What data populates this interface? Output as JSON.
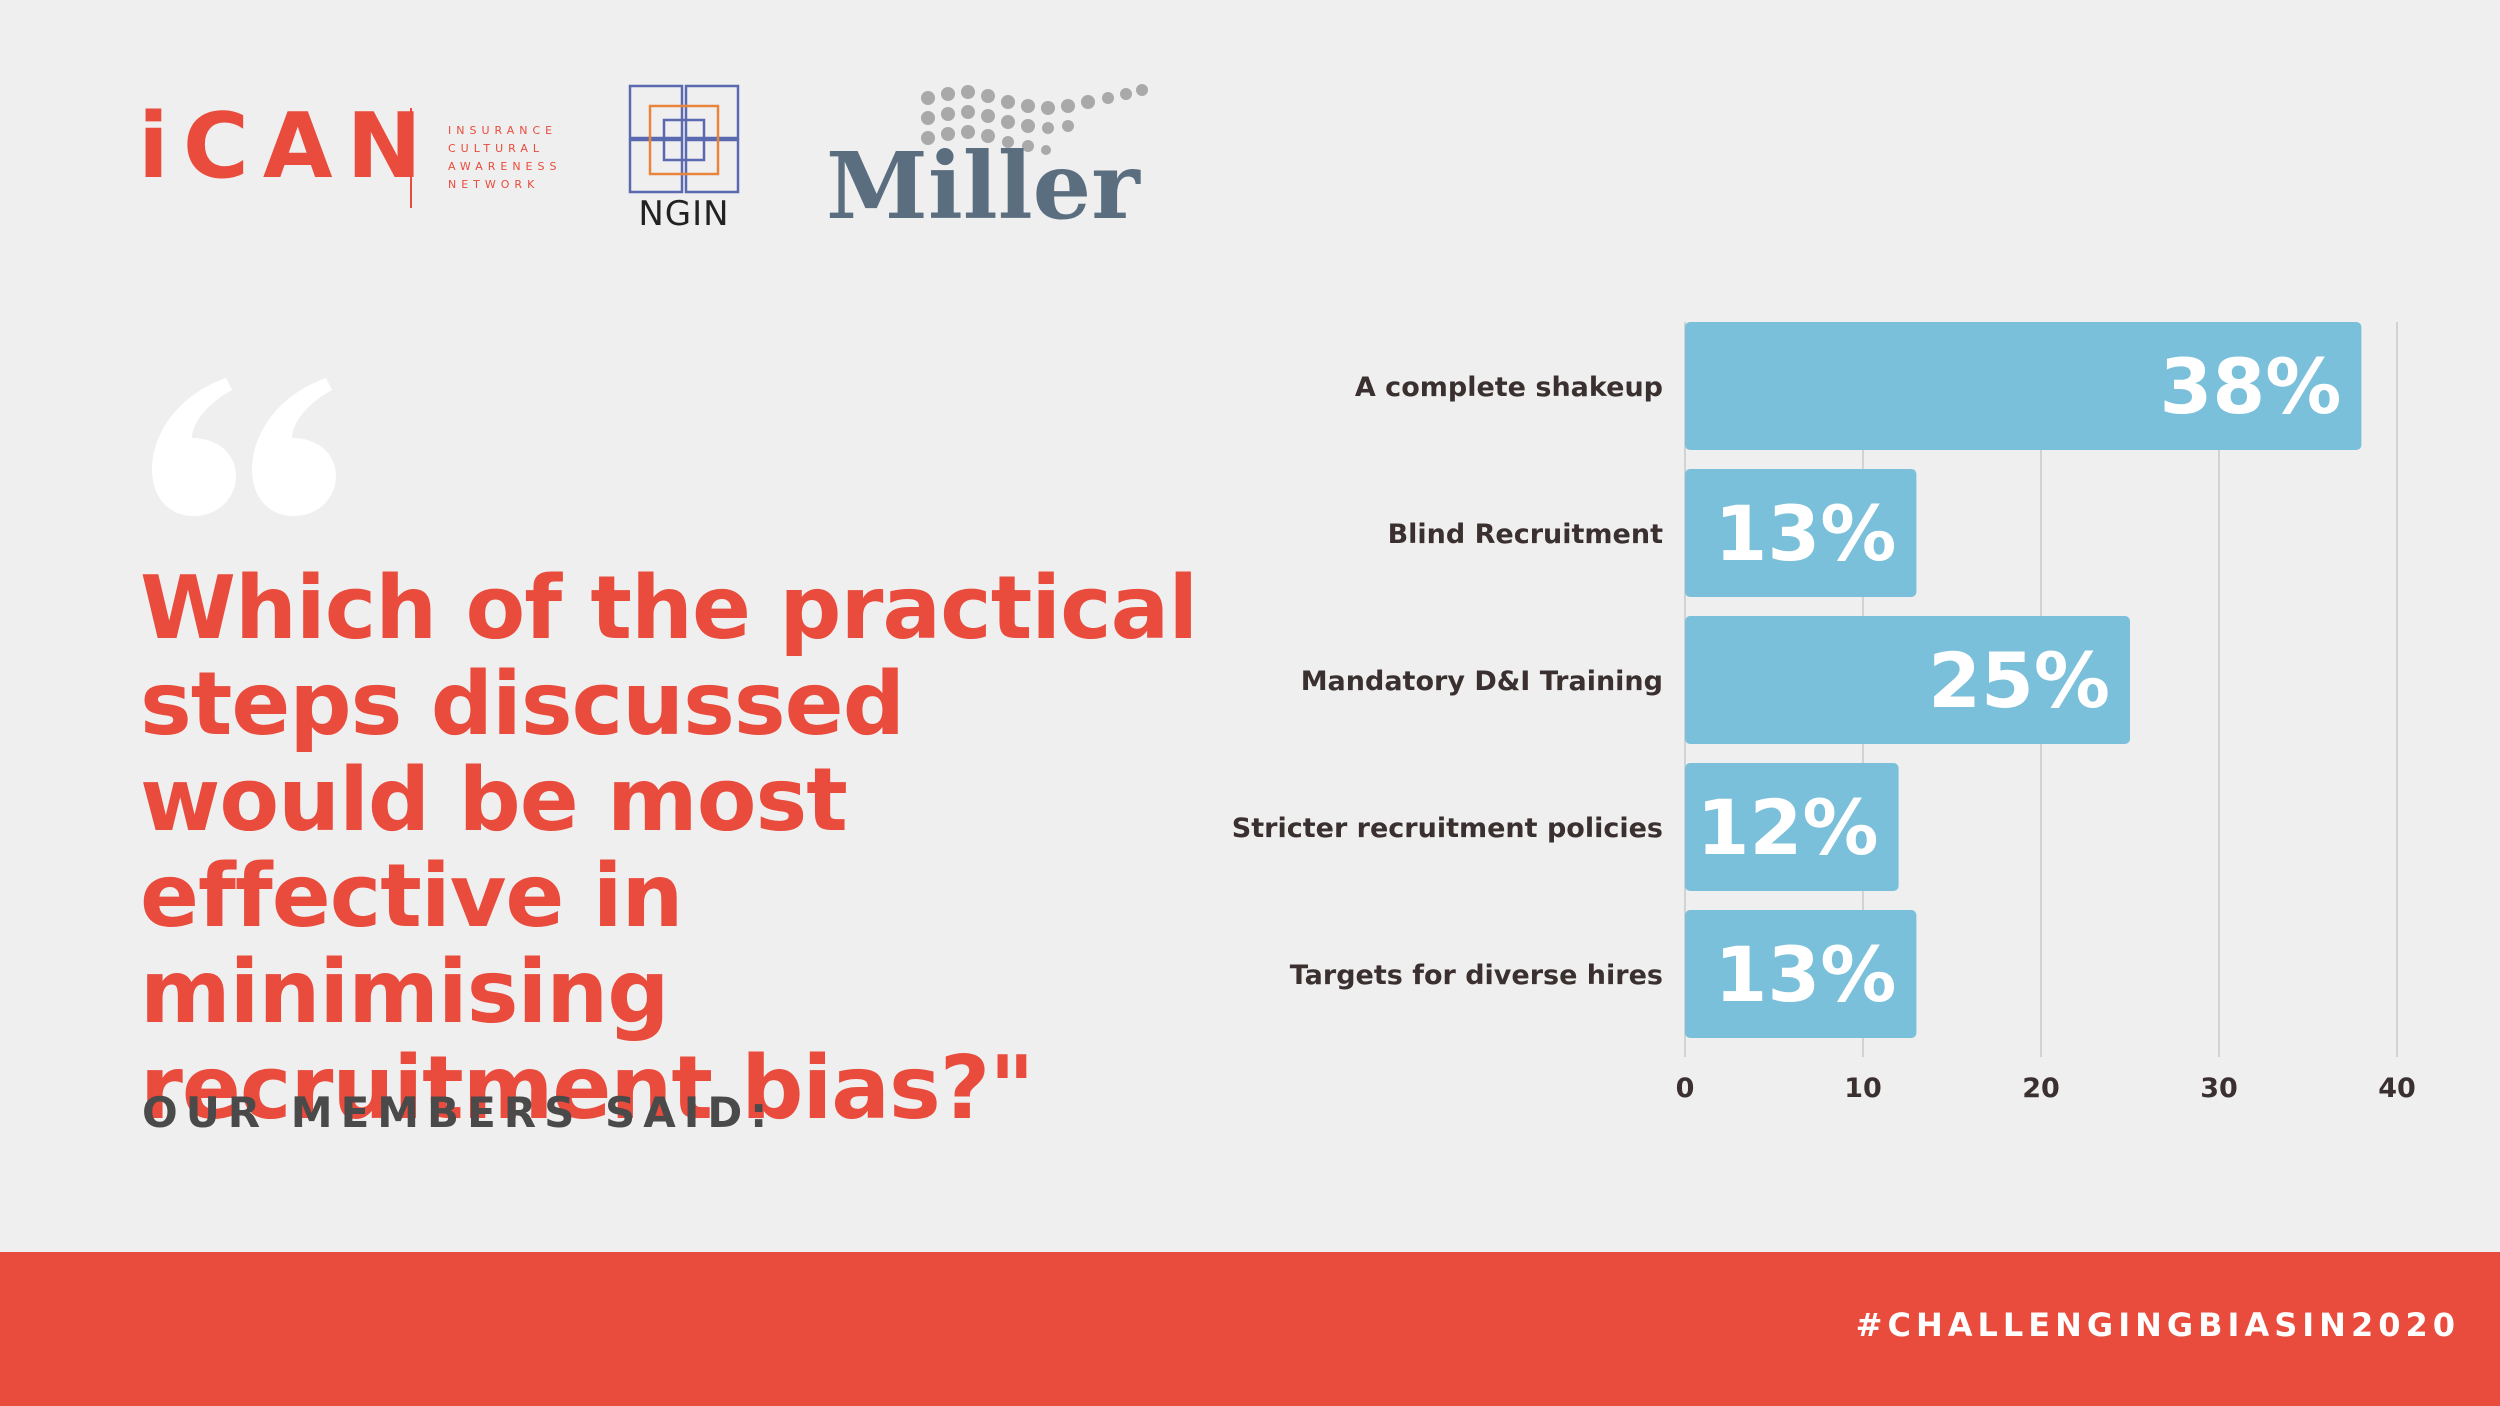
{
  "logos": {
    "ican_word": "iCAN",
    "ican_sub": [
      "INSURANCE",
      "CULTURAL",
      "AWARENESS",
      "NETWORK"
    ],
    "ngin_word": "NGIN",
    "miller_word": "Miller"
  },
  "question": "Which of the practical steps discussed would be most effective in minimising recruitment bias?\"",
  "members_label": "OUR MEMBERS SAID:",
  "footer": {
    "hashtag": "#CHALLENGINGBIASIN2020"
  },
  "colors": {
    "accent": "#e94b3c",
    "bar": "#7bc0da",
    "background": "#f0efef",
    "label": "#3a3030"
  },
  "chart_data": {
    "type": "bar",
    "orientation": "horizontal",
    "categories": [
      "A complete shakeup",
      "Blind Recruitment",
      "Mandatory D&I Training",
      "Stricter recruitment policies",
      "Targets for diverse hires"
    ],
    "values": [
      38,
      13,
      25,
      12,
      13
    ],
    "data_labels": [
      "38%",
      "13%",
      "25%",
      "12%",
      "13%"
    ],
    "xlim": [
      0,
      40
    ],
    "xticks": [
      "0",
      "10",
      "20",
      "30",
      "40"
    ],
    "grid": true,
    "title": "",
    "xlabel": "",
    "ylabel": ""
  }
}
